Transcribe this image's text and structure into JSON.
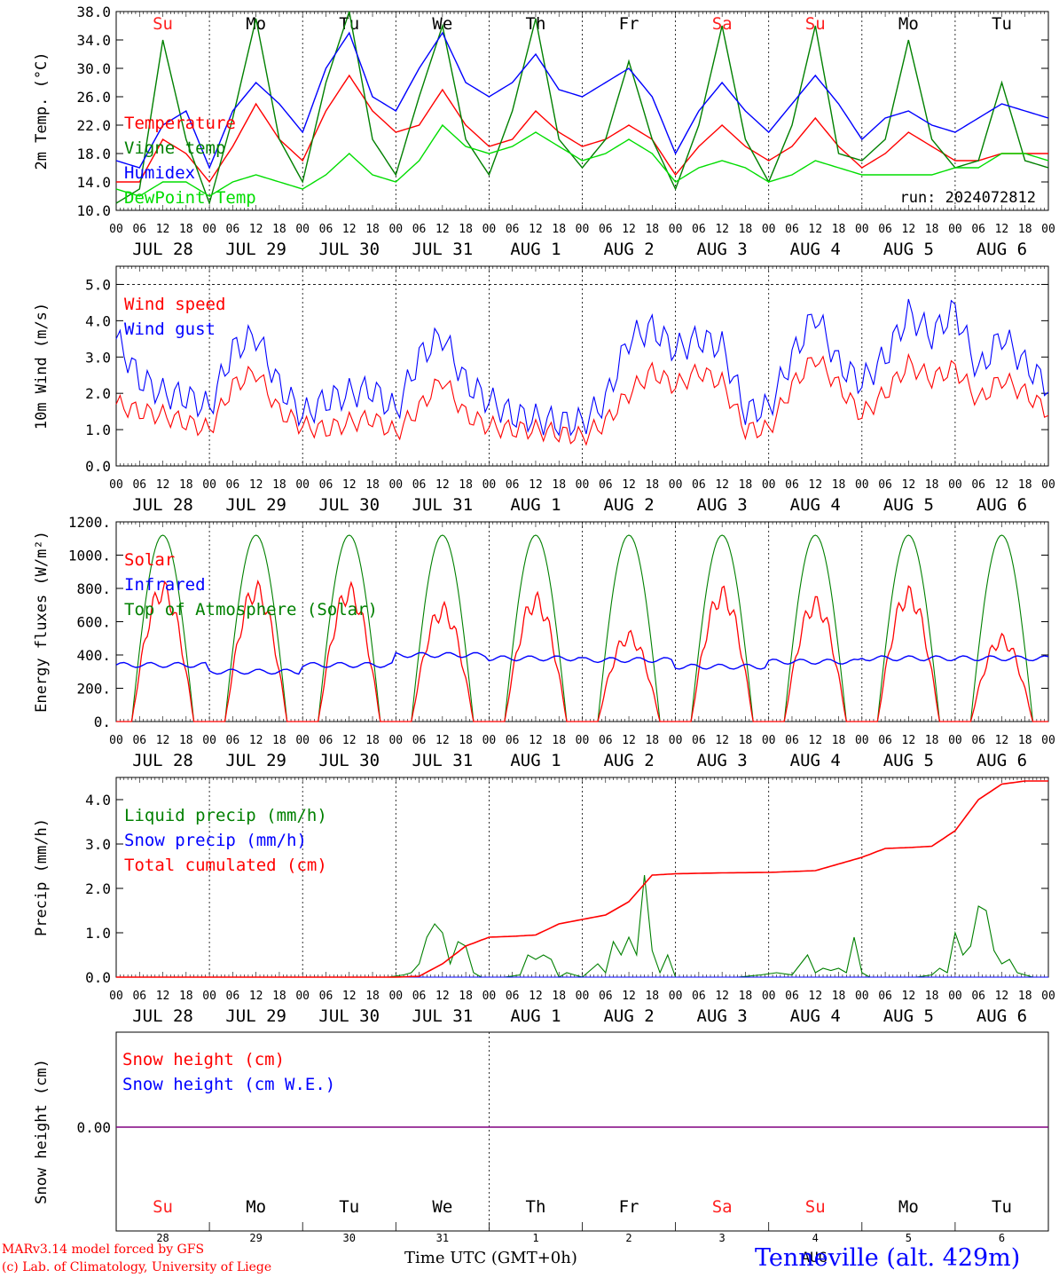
{
  "header": {
    "days_top": [
      {
        "label": "Su",
        "color": "#ff2020"
      },
      {
        "label": "Mo",
        "color": "#000000"
      },
      {
        "label": "Tu",
        "color": "#000000"
      },
      {
        "label": "We",
        "color": "#000000"
      },
      {
        "label": "Th",
        "color": "#000000"
      },
      {
        "label": "Fr",
        "color": "#000000"
      },
      {
        "label": "Sa",
        "color": "#ff2020"
      },
      {
        "label": "Su",
        "color": "#ff2020"
      },
      {
        "label": "Mo",
        "color": "#000000"
      },
      {
        "label": "Tu",
        "color": "#000000"
      }
    ],
    "date_labels": [
      "JUL 28",
      "JUL 29",
      "JUL 30",
      "JUL 31",
      "AUG  1",
      "AUG  2",
      "AUG  3",
      "AUG  4",
      "AUG  5",
      "AUG  6"
    ],
    "hour_labels": [
      "00",
      "06",
      "12",
      "18"
    ],
    "hour_last": "00"
  },
  "colors": {
    "red": "#ff0000",
    "green": "#008000",
    "blue": "#0000ff",
    "lightgreen": "#00dd00",
    "purple": "#800080"
  },
  "chart_data": [
    {
      "id": "temp",
      "type": "line",
      "ylabel": "2m Temp. (°C)",
      "ylim": [
        10,
        38
      ],
      "yticks": [
        "10.0",
        "14.0",
        "18.0",
        "22.0",
        "26.0",
        "30.0",
        "34.0",
        "38.0"
      ],
      "run_label": "run: 2024072812",
      "x_hours": [
        0,
        6,
        12,
        18,
        24,
        30,
        36,
        42,
        48,
        54,
        60,
        66,
        72,
        78,
        84,
        90,
        96,
        102,
        108,
        114,
        120,
        126,
        132,
        138,
        144,
        150,
        156,
        162,
        168,
        174,
        180,
        186,
        192,
        198,
        204,
        210,
        216,
        222,
        228,
        234,
        240
      ],
      "series": [
        {
          "name": "Temperature",
          "color": "#ff0000",
          "values": [
            14,
            14,
            20,
            18,
            14,
            19,
            25,
            20,
            17,
            24,
            29,
            24,
            21,
            22,
            27,
            22,
            19,
            20,
            24,
            21,
            19,
            20,
            22,
            20,
            15,
            19,
            22,
            19,
            17,
            19,
            23,
            19,
            16,
            18,
            21,
            19,
            17,
            17,
            18,
            18,
            18
          ]
        },
        {
          "name": "Vigne temp",
          "color": "#008000",
          "values": [
            11,
            13,
            34,
            20,
            11,
            23,
            37,
            20,
            14,
            28,
            38,
            20,
            15,
            26,
            36,
            20,
            15,
            24,
            37,
            20,
            16,
            20,
            31,
            20,
            13,
            22,
            36,
            20,
            14,
            22,
            36,
            18,
            17,
            20,
            34,
            20,
            16,
            17,
            28,
            17,
            16
          ]
        },
        {
          "name": "Humidex",
          "color": "#0000ff",
          "values": [
            17,
            16,
            22,
            24,
            16,
            24,
            28,
            25,
            21,
            30,
            35,
            26,
            24,
            30,
            35,
            28,
            26,
            28,
            32,
            27,
            26,
            28,
            30,
            26,
            18,
            24,
            28,
            24,
            21,
            25,
            29,
            25,
            20,
            23,
            24,
            22,
            21,
            23,
            25,
            24,
            23
          ]
        },
        {
          "name": "DewPoint Temp",
          "color": "#00dd00",
          "values": [
            13,
            12,
            14,
            14,
            12,
            14,
            15,
            14,
            13,
            15,
            18,
            15,
            14,
            17,
            22,
            19,
            18,
            19,
            21,
            19,
            17,
            18,
            20,
            18,
            14,
            16,
            17,
            16,
            14,
            15,
            17,
            16,
            15,
            15,
            15,
            15,
            16,
            16,
            18,
            18,
            17
          ]
        }
      ]
    },
    {
      "id": "wind",
      "type": "line",
      "ylabel": "10m Wind (m/s)",
      "ylim": [
        0,
        5.5
      ],
      "yticks": [
        "0.0",
        "1.0",
        "2.0",
        "3.0",
        "4.0",
        "5.0"
      ],
      "ref_line": 5.0,
      "x_hours": [
        0,
        6,
        12,
        18,
        24,
        30,
        36,
        42,
        48,
        54,
        60,
        66,
        72,
        78,
        84,
        90,
        96,
        102,
        108,
        114,
        120,
        126,
        132,
        138,
        144,
        150,
        156,
        162,
        168,
        174,
        180,
        186,
        192,
        198,
        204,
        210,
        216,
        222,
        228,
        234,
        240
      ],
      "series": [
        {
          "name": "Wind speed",
          "color": "#ff0000",
          "values": [
            1.7,
            1.5,
            1.4,
            1.2,
            1.0,
            2.2,
            2.6,
            1.5,
            1.1,
            1.0,
            1.2,
            1.3,
            0.9,
            1.6,
            2.4,
            1.4,
            1.1,
            1.0,
            1.0,
            0.9,
            0.8,
            1.2,
            2.0,
            2.6,
            2.2,
            2.6,
            2.3,
            1.0,
            1.0,
            2.2,
            3.0,
            2.2,
            1.4,
            2.0,
            2.8,
            2.4,
            2.7,
            1.8,
            2.4,
            2.0,
            1.5
          ]
        },
        {
          "name": "Wind gust",
          "color": "#0000ff",
          "values": [
            3.5,
            2.4,
            2.0,
            1.9,
            1.6,
            3.2,
            3.6,
            2.2,
            1.4,
            1.8,
            2.0,
            2.1,
            1.5,
            3.0,
            3.6,
            2.3,
            1.8,
            1.4,
            1.3,
            1.2,
            1.2,
            1.8,
            3.5,
            3.8,
            3.2,
            3.5,
            3.3,
            1.5,
            1.6,
            3.0,
            4.2,
            2.8,
            2.3,
            3.0,
            4.2,
            3.6,
            4.3,
            2.6,
            3.6,
            2.8,
            2.2
          ]
        }
      ]
    },
    {
      "id": "energy",
      "type": "line",
      "ylabel": "Energy fluxes (W/m²)",
      "ylim": [
        0,
        1200
      ],
      "yticks": [
        "0.",
        "200.",
        "400.",
        "600.",
        "800.",
        "1000.",
        "1200."
      ],
      "solar_peaks": [
        850,
        850,
        840,
        720,
        780,
        550,
        820,
        760,
        820,
        530
      ],
      "toa_peak": 1120,
      "sunrise_hour": 4,
      "sunset_hour": 20,
      "infrared_base": [
        340,
        300,
        340,
        400,
        380,
        370,
        330,
        360,
        380,
        380
      ],
      "series": [
        {
          "name": "Solar",
          "color": "#ff0000"
        },
        {
          "name": "Infrared",
          "color": "#0000ff"
        },
        {
          "name": "Top of Atmosphere (Solar)",
          "color": "#008000"
        }
      ]
    },
    {
      "id": "precip",
      "type": "line",
      "ylabel": "Precip (mm/h)",
      "ylim": [
        0,
        4.5
      ],
      "yticks": [
        "0.0",
        "1.0",
        "2.0",
        "3.0",
        "4.0"
      ],
      "cumul_x": [
        0,
        48,
        60,
        72,
        78,
        84,
        90,
        96,
        102,
        108,
        114,
        120,
        126,
        132,
        138,
        144,
        156,
        168,
        180,
        186,
        192,
        198,
        204,
        210,
        216,
        222,
        228,
        234,
        240
      ],
      "cumul_y": [
        0,
        0,
        0,
        0,
        0.02,
        0.3,
        0.7,
        0.9,
        0.92,
        0.95,
        1.2,
        1.3,
        1.4,
        1.7,
        2.3,
        2.33,
        2.35,
        2.36,
        2.4,
        2.55,
        2.7,
        2.9,
        2.92,
        2.95,
        3.3,
        4.0,
        4.35,
        4.42,
        4.42
      ],
      "liquid_x": [
        0,
        70,
        74,
        76,
        78,
        80,
        82,
        84,
        86,
        88,
        90,
        92,
        94,
        96,
        98,
        100,
        104,
        106,
        108,
        110,
        112,
        114,
        116,
        118,
        120,
        124,
        126,
        128,
        130,
        132,
        134,
        136,
        138,
        140,
        142,
        144,
        160,
        166,
        170,
        174,
        178,
        180,
        182,
        184,
        186,
        188,
        190,
        192,
        194,
        196,
        198,
        206,
        210,
        212,
        214,
        216,
        218,
        220,
        222,
        224,
        226,
        228,
        230,
        232,
        234,
        236,
        240
      ],
      "liquid_y": [
        0,
        0,
        0.05,
        0.1,
        0.3,
        0.9,
        1.2,
        1.0,
        0.3,
        0.8,
        0.7,
        0.1,
        0,
        0,
        0,
        0,
        0.05,
        0.5,
        0.4,
        0.5,
        0.4,
        0,
        0.1,
        0.05,
        0,
        0.3,
        0.1,
        0.8,
        0.5,
        0.9,
        0.5,
        2.3,
        0.6,
        0.1,
        0.5,
        0,
        0,
        0.05,
        0.1,
        0.05,
        0.5,
        0.1,
        0.2,
        0.15,
        0.2,
        0.1,
        0.9,
        0.1,
        0,
        0,
        0,
        0,
        0.05,
        0.2,
        0.1,
        1.0,
        0.5,
        0.7,
        1.6,
        1.5,
        0.6,
        0.3,
        0.4,
        0.1,
        0.05,
        0,
        0
      ],
      "series": [
        {
          "name": "Liquid precip (mm/h)",
          "color": "#008000"
        },
        {
          "name": "Snow precip (mm/h)",
          "color": "#0000ff"
        },
        {
          "name": "Total cumulated (cm)",
          "color": "#ff0000"
        }
      ]
    },
    {
      "id": "snow",
      "type": "line",
      "ylabel": "Snow height (cm)",
      "yticks": [
        "0.00"
      ],
      "value": 0.0,
      "series": [
        {
          "name": "Snow height (cm)",
          "color": "#ff0000"
        },
        {
          "name": "Snow height (cm W.E.)",
          "color": "#0000ff"
        }
      ]
    }
  ],
  "bottom": {
    "day_numbers": [
      "28",
      "29",
      "30",
      "31",
      "1",
      "2",
      "3",
      "4",
      "5",
      "6"
    ],
    "month_label": "AUG",
    "xlabel": "Time UTC (GMT+0h)"
  },
  "footer": {
    "model": "MARv3.14 model forced by GFS",
    "lab": "(c) Lab. of Climatology, University of Liege",
    "station": "Tenneville (alt. 429m)"
  }
}
